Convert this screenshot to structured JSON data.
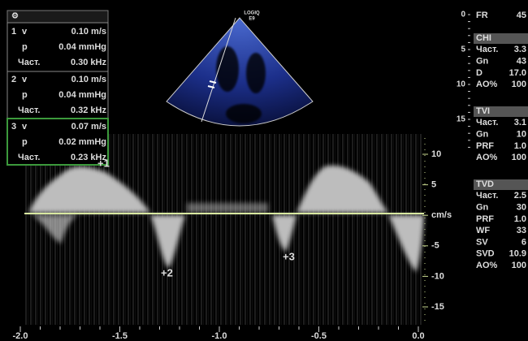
{
  "header_icon": "⚙",
  "measurements": [
    {
      "number": "1",
      "rows": [
        [
          "v",
          "0.10 m/s"
        ],
        [
          "p",
          "0.04 mmHg"
        ],
        [
          "Част.",
          "0.30 kHz"
        ]
      ]
    },
    {
      "number": "2",
      "rows": [
        [
          "v",
          "0.10 m/s"
        ],
        [
          "p",
          "0.04 mmHg"
        ],
        [
          "Част.",
          "0.32 kHz"
        ]
      ]
    },
    {
      "number": "3",
      "rows": [
        [
          "v",
          "0.07 m/s"
        ],
        [
          "p",
          "0.02 mmHg"
        ],
        [
          "Част.",
          "0.23 kHz"
        ]
      ]
    }
  ],
  "logo": [
    "LOGIQ",
    "E9"
  ],
  "depth_scale": [
    "0",
    "5",
    "10",
    "15"
  ],
  "frame_rate": [
    "FR",
    "45"
  ],
  "sections": [
    {
      "title": "CHI",
      "rows": [
        [
          "Част.",
          "3.3"
        ],
        [
          "Gn",
          "43"
        ],
        [
          "D",
          "17.0"
        ],
        [
          "AO%",
          "100"
        ]
      ]
    },
    {
      "title": "TVI",
      "rows": [
        [
          "Част.",
          "3.1"
        ],
        [
          "Gn",
          "10"
        ],
        [
          "PRF",
          "1.0"
        ],
        [
          "AO%",
          "100"
        ]
      ]
    },
    {
      "title": "TVD",
      "rows": [
        [
          "Част.",
          "2.5"
        ],
        [
          "Gn",
          "30"
        ],
        [
          "PRF",
          "1.0"
        ],
        [
          "WF",
          "33"
        ],
        [
          "SV",
          "6"
        ],
        [
          "SVD",
          "10.9"
        ],
        [
          "AO%",
          "100"
        ]
      ]
    }
  ],
  "velocity_scale": [
    "10",
    "5",
    "cm/s",
    "-5",
    "-10",
    "-15"
  ],
  "time_scale": [
    "-2.0",
    "-1.5",
    "-1.0",
    "-0.5",
    "0.0"
  ],
  "markers": [
    "+1",
    "+2",
    "+3"
  ]
}
